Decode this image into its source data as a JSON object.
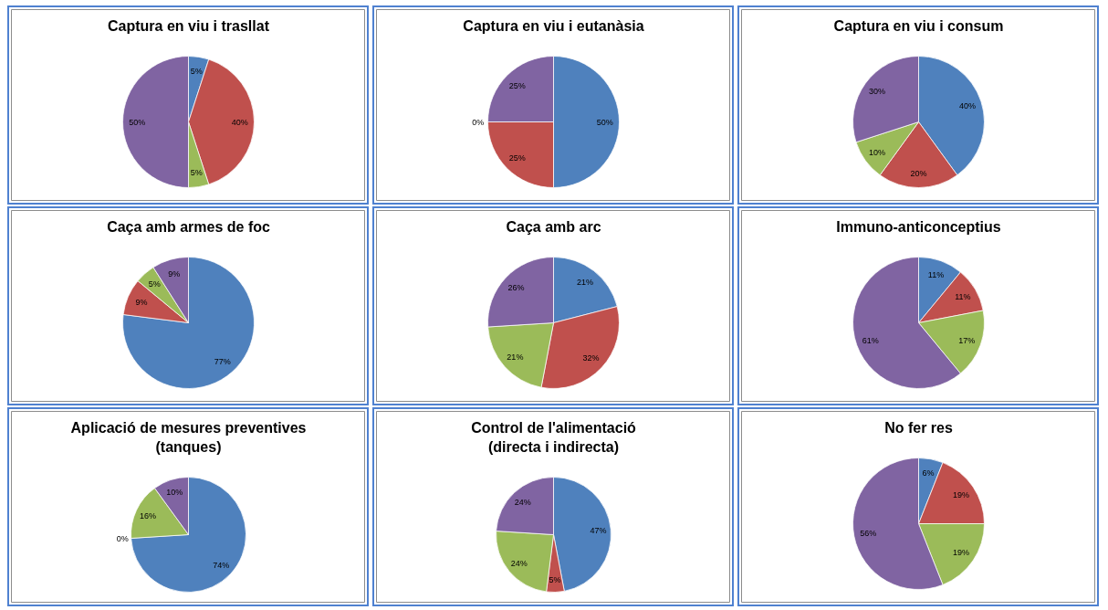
{
  "chart_data": [
    {
      "type": "pie",
      "title": "Captura en viu i trasllat",
      "categories": [
        null,
        null,
        null,
        null
      ],
      "values": [
        5,
        40,
        5,
        50
      ],
      "colors": [
        "#4f81bd",
        "#c0504d",
        "#9bbb59",
        "#8064a2"
      ],
      "value_labels": [
        "5%",
        "40%",
        "5%",
        "50%"
      ]
    },
    {
      "type": "pie",
      "title": "Captura en viu i eutanàsia",
      "categories": [
        null,
        null,
        null,
        null
      ],
      "values": [
        50,
        25,
        0,
        25
      ],
      "colors": [
        "#4f81bd",
        "#c0504d",
        "#9bbb59",
        "#8064a2"
      ],
      "value_labels": [
        "50%",
        "25%",
        "0%",
        "25%"
      ]
    },
    {
      "type": "pie",
      "title": "Captura en viu i consum",
      "categories": [
        null,
        null,
        null,
        null
      ],
      "values": [
        40,
        20,
        10,
        30
      ],
      "colors": [
        "#4f81bd",
        "#c0504d",
        "#9bbb59",
        "#8064a2"
      ],
      "value_labels": [
        "40%",
        "20%",
        "10%",
        "30%"
      ]
    },
    {
      "type": "pie",
      "title": "Caça amb armes de foc",
      "categories": [
        null,
        null,
        null,
        null
      ],
      "values": [
        77,
        9,
        5,
        9
      ],
      "colors": [
        "#4f81bd",
        "#c0504d",
        "#9bbb59",
        "#8064a2"
      ],
      "value_labels": [
        "77%",
        "9%",
        "5%",
        "9%"
      ]
    },
    {
      "type": "pie",
      "title": "Caça amb arc",
      "categories": [
        null,
        null,
        null,
        null
      ],
      "values": [
        21,
        32,
        21,
        26
      ],
      "colors": [
        "#4f81bd",
        "#c0504d",
        "#9bbb59",
        "#8064a2"
      ],
      "value_labels": [
        "21%",
        "32%",
        "21%",
        "26%"
      ]
    },
    {
      "type": "pie",
      "title": "Immuno-anticonceptius",
      "categories": [
        null,
        null,
        null,
        null
      ],
      "values": [
        11,
        11,
        17,
        61
      ],
      "colors": [
        "#4f81bd",
        "#c0504d",
        "#9bbb59",
        "#8064a2"
      ],
      "value_labels": [
        "11%",
        "11%",
        "17%",
        "61%"
      ]
    },
    {
      "type": "pie",
      "title": "Aplicació de mesures preventives (tanques)",
      "categories": [
        null,
        null,
        null,
        null
      ],
      "values": [
        74,
        0,
        16,
        10
      ],
      "colors": [
        "#4f81bd",
        "#c0504d",
        "#9bbb59",
        "#8064a2"
      ],
      "value_labels": [
        "74%",
        "0%",
        "16%",
        "10%"
      ]
    },
    {
      "type": "pie",
      "title": "Control de l'alimentació (directa i indirecta)",
      "categories": [
        null,
        null,
        null,
        null
      ],
      "values": [
        47,
        5,
        24,
        24
      ],
      "colors": [
        "#4f81bd",
        "#c0504d",
        "#9bbb59",
        "#8064a2"
      ],
      "value_labels": [
        "47%",
        "5%",
        "24%",
        "24%"
      ]
    },
    {
      "type": "pie",
      "title": "No fer res",
      "categories": [
        null,
        null,
        null,
        null
      ],
      "values": [
        6,
        19,
        19,
        56
      ],
      "colors": [
        "#4f81bd",
        "#c0504d",
        "#9bbb59",
        "#8064a2"
      ],
      "value_labels": [
        "6%",
        "19%",
        "19%",
        "56%"
      ]
    }
  ]
}
